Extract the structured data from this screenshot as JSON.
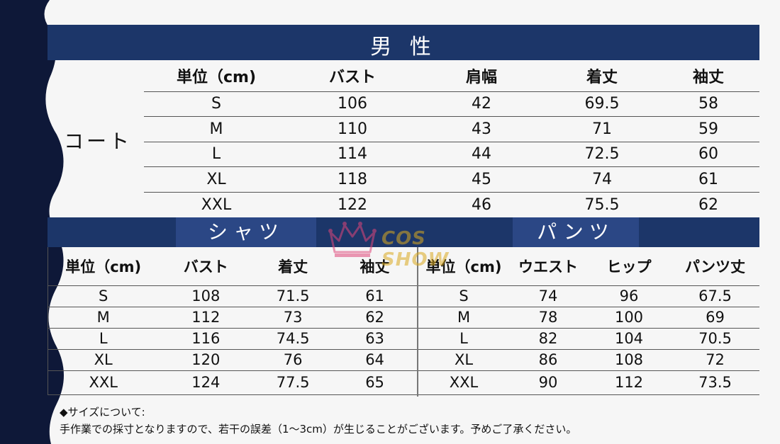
{
  "men_title": "男 性",
  "coat": {
    "label": "コート",
    "headers": [
      "単位（cm)",
      "バスト",
      "肩幅",
      "着丈",
      "袖丈"
    ],
    "rows": [
      [
        "S",
        "106",
        "42",
        "69.5",
        "58"
      ],
      [
        "M",
        "110",
        "43",
        "71",
        "59"
      ],
      [
        "L",
        "114",
        "44",
        "72.5",
        "60"
      ],
      [
        "XL",
        "118",
        "45",
        "74",
        "61"
      ],
      [
        "XXL",
        "122",
        "46",
        "75.5",
        "62"
      ]
    ]
  },
  "shirt": {
    "title": "シャツ",
    "headers": [
      "単位（cm)",
      "バスト",
      "着丈",
      "袖丈"
    ],
    "rows": [
      [
        "S",
        "108",
        "71.5",
        "61"
      ],
      [
        "M",
        "112",
        "73",
        "62"
      ],
      [
        "L",
        "116",
        "74.5",
        "63"
      ],
      [
        "XL",
        "120",
        "76",
        "64"
      ],
      [
        "XXL",
        "124",
        "77.5",
        "65"
      ]
    ]
  },
  "pants": {
    "title": "パンツ",
    "headers": [
      "単位（cm)",
      "ウエスト",
      "ヒップ",
      "パンツ丈"
    ],
    "rows": [
      [
        "S",
        "74",
        "96",
        "67.5"
      ],
      [
        "M",
        "78",
        "100",
        "69"
      ],
      [
        "L",
        "82",
        "104",
        "70.5"
      ],
      [
        "XL",
        "86",
        "108",
        "72"
      ],
      [
        "XXL",
        "90",
        "112",
        "73.5"
      ]
    ]
  },
  "watermark": {
    "text": "COS SHOW",
    "icon": "crown-icon",
    "color": "#d9a91f"
  },
  "notes": {
    "heading": "◆サイズについて:",
    "body": "手作業での採寸となりますので、若干の誤差（1～3cm）が生じることがございます。予めご了承ください。"
  },
  "colors": {
    "banner": "#1c3669",
    "subtab": "#2b4785",
    "left_band": "#0e1838"
  }
}
